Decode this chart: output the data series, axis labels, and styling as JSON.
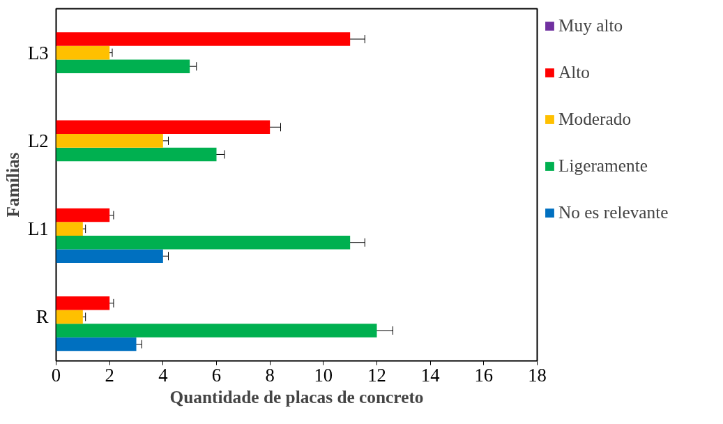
{
  "chart_data": {
    "type": "bar",
    "orientation": "horizontal",
    "xlabel": "Quantidade de placas de concreto",
    "ylabel": "Famílias",
    "categories": [
      "L3",
      "L2",
      "L1",
      "R"
    ],
    "series": [
      {
        "name": "No es relevante",
        "color": "#0070c0",
        "values": [
          null,
          null,
          4,
          3
        ],
        "errors": [
          null,
          null,
          0.2,
          0.2
        ]
      },
      {
        "name": "Ligeramente",
        "color": "#00b050",
        "values": [
          5,
          6,
          11,
          12
        ],
        "errors": [
          0.25,
          0.3,
          0.55,
          0.6
        ]
      },
      {
        "name": "Moderado",
        "color": "#ffc000",
        "values": [
          2,
          4,
          1,
          1
        ],
        "errors": [
          0.1,
          0.2,
          0.1,
          0.1
        ]
      },
      {
        "name": "Alto",
        "color": "#ff0000",
        "values": [
          11,
          8,
          2,
          2
        ],
        "errors": [
          0.55,
          0.4,
          0.15,
          0.15
        ]
      },
      {
        "name": "Muy alto",
        "color": "#7030a0",
        "values": [
          0,
          0,
          0,
          0
        ],
        "errors": [
          null,
          null,
          null,
          null
        ]
      }
    ],
    "xlim": [
      0,
      18
    ],
    "xticks": [
      0,
      2,
      4,
      6,
      8,
      10,
      12,
      14,
      16,
      18
    ],
    "grid": false,
    "legend": "right"
  }
}
